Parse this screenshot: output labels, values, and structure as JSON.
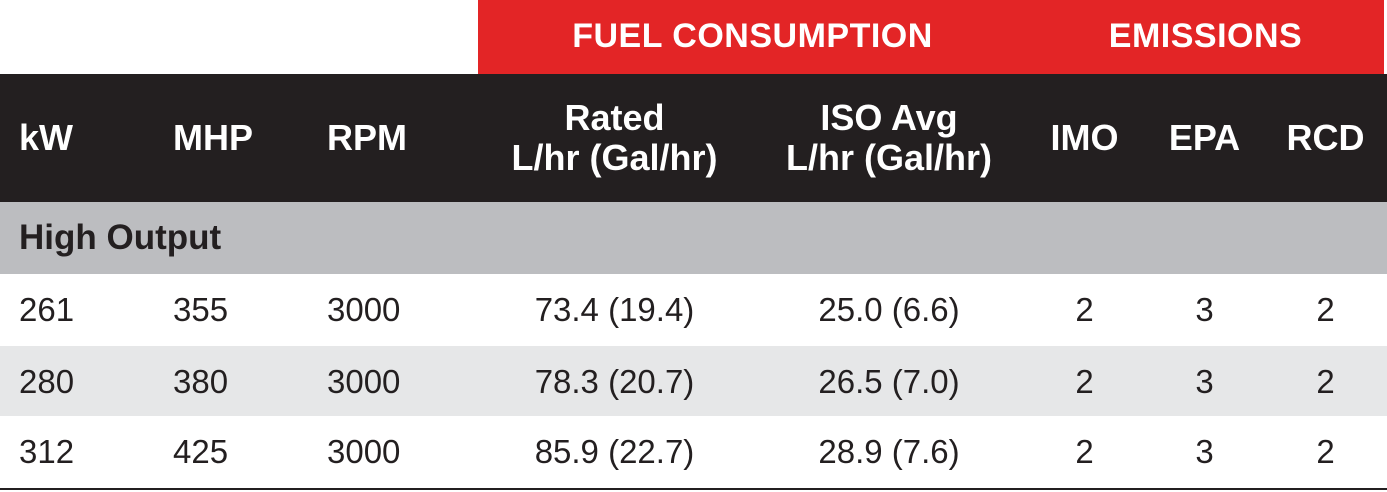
{
  "groups": {
    "fuel": "FUEL CONSUMPTION",
    "emissions": "EMISSIONS"
  },
  "headers": {
    "kw": "kW",
    "mhp": "MHP",
    "rpm": "RPM",
    "rated_line1": "Rated",
    "rated_line2": "L/hr (Gal/hr)",
    "iso_line1": "ISO Avg",
    "iso_line2": "L/hr (Gal/hr)",
    "imo": "IMO",
    "epa": "EPA",
    "rcd": "RCD"
  },
  "section": {
    "label": "High Output"
  },
  "rows": [
    {
      "kw": "261",
      "mhp": "355",
      "rpm": "3000",
      "rated": "73.4 (19.4)",
      "iso": "25.0 (6.6)",
      "imo": "2",
      "epa": "3",
      "rcd": "2"
    },
    {
      "kw": "280",
      "mhp": "380",
      "rpm": "3000",
      "rated": "78.3 (20.7)",
      "iso": "26.5 (7.0)",
      "imo": "2",
      "epa": "3",
      "rcd": "2"
    },
    {
      "kw": "312",
      "mhp": "425",
      "rpm": "3000",
      "rated": "85.9 (22.7)",
      "iso": "28.9 (7.6)",
      "imo": "2",
      "epa": "3",
      "rcd": "2"
    }
  ],
  "colors": {
    "accent_red": "#e32526",
    "header_dark": "#231f20",
    "section_gray": "#bcbdc0",
    "row_shade": "#e6e7e8"
  }
}
